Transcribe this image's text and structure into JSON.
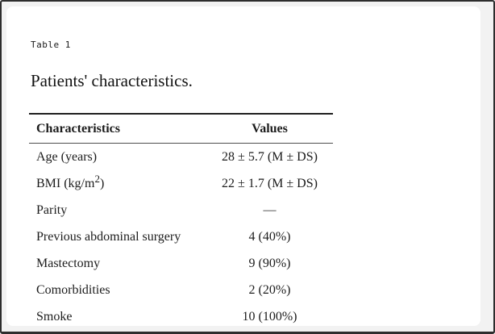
{
  "frame": {
    "outer_background": "#f2f2f2",
    "border_color": "#2d2d2d",
    "card_background": "#ffffff",
    "text_color": "#1c1c1c",
    "top_rule_color": "#1f1f1f",
    "header_rule_color": "#4d4d4d"
  },
  "figure_label": "Table 1",
  "title": "Patients' characteristics.",
  "table": {
    "col_headers": [
      "Characteristics",
      "Values"
    ],
    "rows": [
      {
        "label": "Age (years)",
        "value": "28 ± 5.7 (M ± DS)"
      },
      {
        "label": "BMI (kg/m",
        "label_sup": "2",
        "label_suffix": ")",
        "value": "22 ± 1.7 (M ± DS)"
      },
      {
        "label": "Parity",
        "value": "—"
      },
      {
        "label": "Previous abdominal surgery",
        "value": "4 (40%)"
      },
      {
        "label": "Mastectomy",
        "value": "9 (90%)"
      },
      {
        "label": "Comorbidities",
        "value": "2 (20%)"
      },
      {
        "label": "Smoke",
        "value": "10 (100%)"
      }
    ]
  }
}
